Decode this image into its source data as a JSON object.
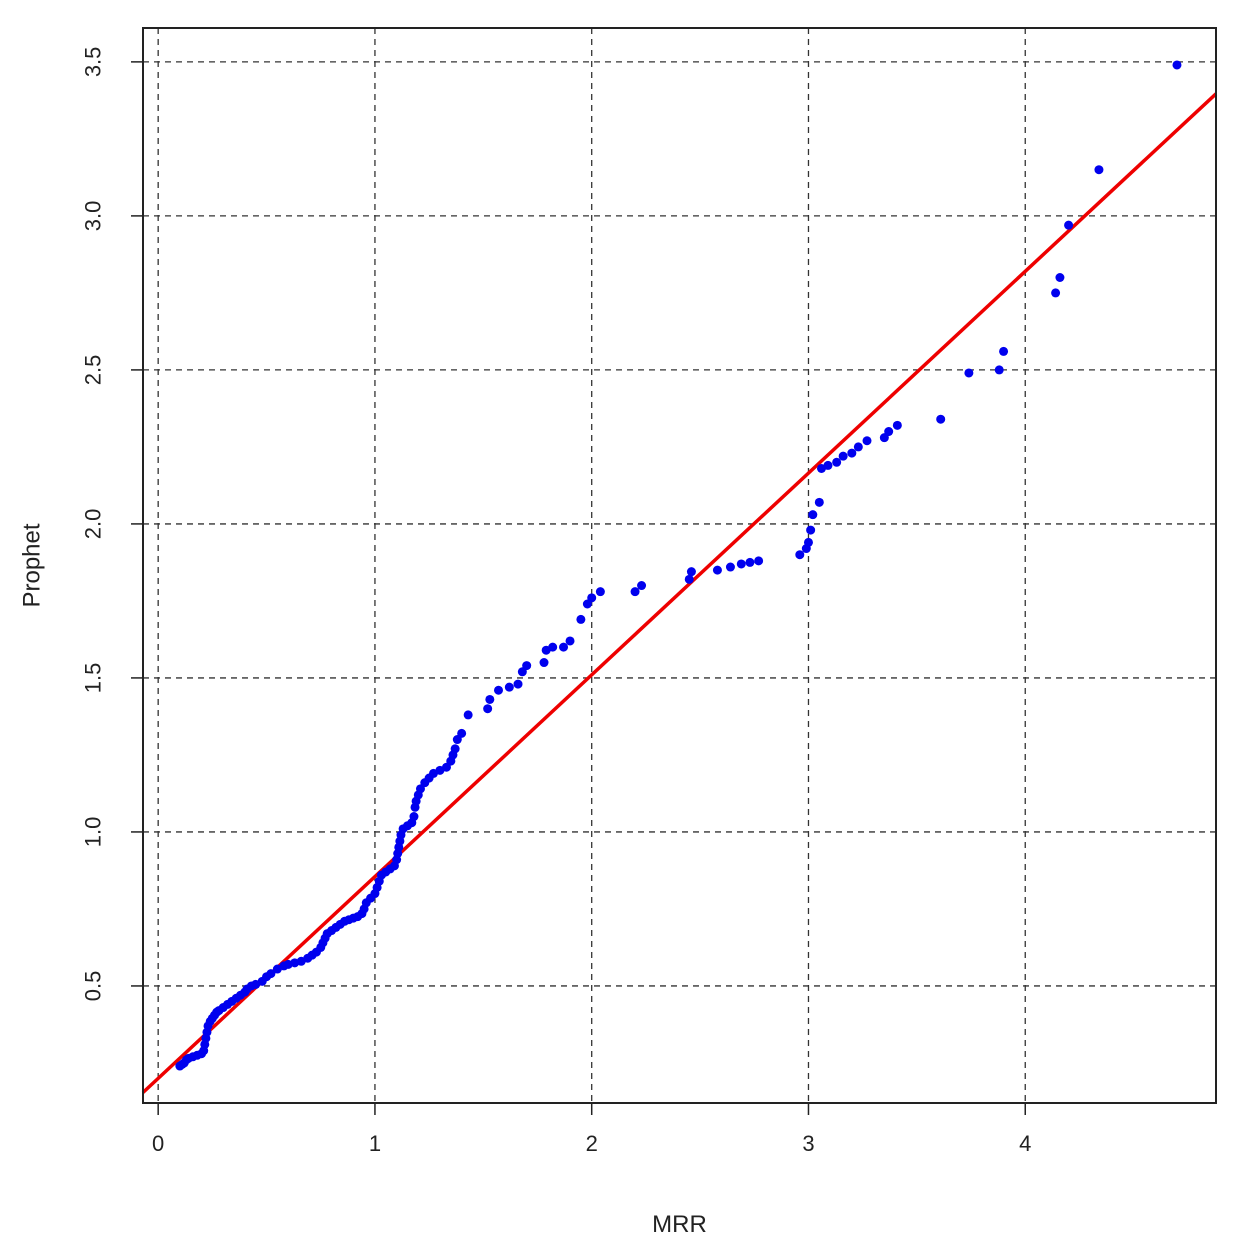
{
  "chart_data": {
    "type": "scatter",
    "title": "",
    "xlabel": "MRR",
    "ylabel": "Prophet",
    "xlim": [
      -0.07,
      4.88
    ],
    "ylim": [
      0.12,
      3.61
    ],
    "grid": true,
    "x_ticks": [
      "0",
      "1",
      "2",
      "3",
      "4"
    ],
    "y_ticks": [
      "0.5",
      "1.0",
      "1.5",
      "2.0",
      "2.5",
      "3.0",
      "3.5"
    ],
    "point_color": "#0000ee",
    "line_color": "#ee0000",
    "fit_line": {
      "intercept": 0.2,
      "slope": 0.655
    },
    "points": [
      [
        0.1,
        0.24
      ],
      [
        0.11,
        0.245
      ],
      [
        0.12,
        0.25
      ],
      [
        0.13,
        0.26
      ],
      [
        0.14,
        0.265
      ],
      [
        0.16,
        0.27
      ],
      [
        0.18,
        0.275
      ],
      [
        0.2,
        0.28
      ],
      [
        0.21,
        0.29
      ],
      [
        0.215,
        0.31
      ],
      [
        0.22,
        0.33
      ],
      [
        0.225,
        0.35
      ],
      [
        0.23,
        0.37
      ],
      [
        0.24,
        0.385
      ],
      [
        0.25,
        0.395
      ],
      [
        0.26,
        0.405
      ],
      [
        0.27,
        0.415
      ],
      [
        0.28,
        0.42
      ],
      [
        0.3,
        0.43
      ],
      [
        0.32,
        0.44
      ],
      [
        0.34,
        0.45
      ],
      [
        0.36,
        0.46
      ],
      [
        0.38,
        0.47
      ],
      [
        0.4,
        0.48
      ],
      [
        0.41,
        0.49
      ],
      [
        0.43,
        0.5
      ],
      [
        0.45,
        0.505
      ],
      [
        0.48,
        0.515
      ],
      [
        0.5,
        0.53
      ],
      [
        0.52,
        0.54
      ],
      [
        0.55,
        0.555
      ],
      [
        0.58,
        0.565
      ],
      [
        0.6,
        0.57
      ],
      [
        0.63,
        0.575
      ],
      [
        0.66,
        0.58
      ],
      [
        0.69,
        0.59
      ],
      [
        0.71,
        0.6
      ],
      [
        0.73,
        0.61
      ],
      [
        0.75,
        0.625
      ],
      [
        0.76,
        0.64
      ],
      [
        0.77,
        0.655
      ],
      [
        0.78,
        0.67
      ],
      [
        0.8,
        0.68
      ],
      [
        0.82,
        0.69
      ],
      [
        0.84,
        0.7
      ],
      [
        0.86,
        0.71
      ],
      [
        0.88,
        0.715
      ],
      [
        0.9,
        0.72
      ],
      [
        0.92,
        0.725
      ],
      [
        0.94,
        0.735
      ],
      [
        0.95,
        0.75
      ],
      [
        0.96,
        0.77
      ],
      [
        0.98,
        0.785
      ],
      [
        1.0,
        0.8
      ],
      [
        1.01,
        0.82
      ],
      [
        1.02,
        0.84
      ],
      [
        1.03,
        0.86
      ],
      [
        1.05,
        0.87
      ],
      [
        1.07,
        0.88
      ],
      [
        1.09,
        0.89
      ],
      [
        1.1,
        0.91
      ],
      [
        1.105,
        0.93
      ],
      [
        1.11,
        0.95
      ],
      [
        1.115,
        0.97
      ],
      [
        1.12,
        0.99
      ],
      [
        1.13,
        1.01
      ],
      [
        1.15,
        1.02
      ],
      [
        1.17,
        1.03
      ],
      [
        1.18,
        1.05
      ],
      [
        1.185,
        1.08
      ],
      [
        1.19,
        1.1
      ],
      [
        1.2,
        1.12
      ],
      [
        1.21,
        1.14
      ],
      [
        1.23,
        1.16
      ],
      [
        1.25,
        1.175
      ],
      [
        1.27,
        1.19
      ],
      [
        1.3,
        1.2
      ],
      [
        1.33,
        1.21
      ],
      [
        1.35,
        1.23
      ],
      [
        1.36,
        1.25
      ],
      [
        1.37,
        1.27
      ],
      [
        1.38,
        1.3
      ],
      [
        1.4,
        1.32
      ],
      [
        1.43,
        1.38
      ],
      [
        1.52,
        1.4
      ],
      [
        1.53,
        1.43
      ],
      [
        1.57,
        1.46
      ],
      [
        1.62,
        1.47
      ],
      [
        1.66,
        1.48
      ],
      [
        1.68,
        1.52
      ],
      [
        1.7,
        1.54
      ],
      [
        1.78,
        1.55
      ],
      [
        1.79,
        1.59
      ],
      [
        1.82,
        1.6
      ],
      [
        1.87,
        1.6
      ],
      [
        1.9,
        1.62
      ],
      [
        1.95,
        1.69
      ],
      [
        1.98,
        1.74
      ],
      [
        2.0,
        1.76
      ],
      [
        2.04,
        1.78
      ],
      [
        2.2,
        1.78
      ],
      [
        2.23,
        1.8
      ],
      [
        2.45,
        1.82
      ],
      [
        2.46,
        1.845
      ],
      [
        2.58,
        1.85
      ],
      [
        2.64,
        1.86
      ],
      [
        2.69,
        1.87
      ],
      [
        2.73,
        1.875
      ],
      [
        2.77,
        1.88
      ],
      [
        2.96,
        1.9
      ],
      [
        2.99,
        1.92
      ],
      [
        3.0,
        1.94
      ],
      [
        3.01,
        1.98
      ],
      [
        3.02,
        2.03
      ],
      [
        3.05,
        2.07
      ],
      [
        3.06,
        2.18
      ],
      [
        3.09,
        2.19
      ],
      [
        3.13,
        2.2
      ],
      [
        3.16,
        2.22
      ],
      [
        3.2,
        2.23
      ],
      [
        3.23,
        2.25
      ],
      [
        3.27,
        2.27
      ],
      [
        3.35,
        2.28
      ],
      [
        3.37,
        2.3
      ],
      [
        3.41,
        2.32
      ],
      [
        3.61,
        2.34
      ],
      [
        3.74,
        2.49
      ],
      [
        3.88,
        2.5
      ],
      [
        3.9,
        2.56
      ],
      [
        4.14,
        2.75
      ],
      [
        4.16,
        2.8
      ],
      [
        4.2,
        2.97
      ],
      [
        4.34,
        3.15
      ],
      [
        4.7,
        3.49
      ]
    ]
  }
}
